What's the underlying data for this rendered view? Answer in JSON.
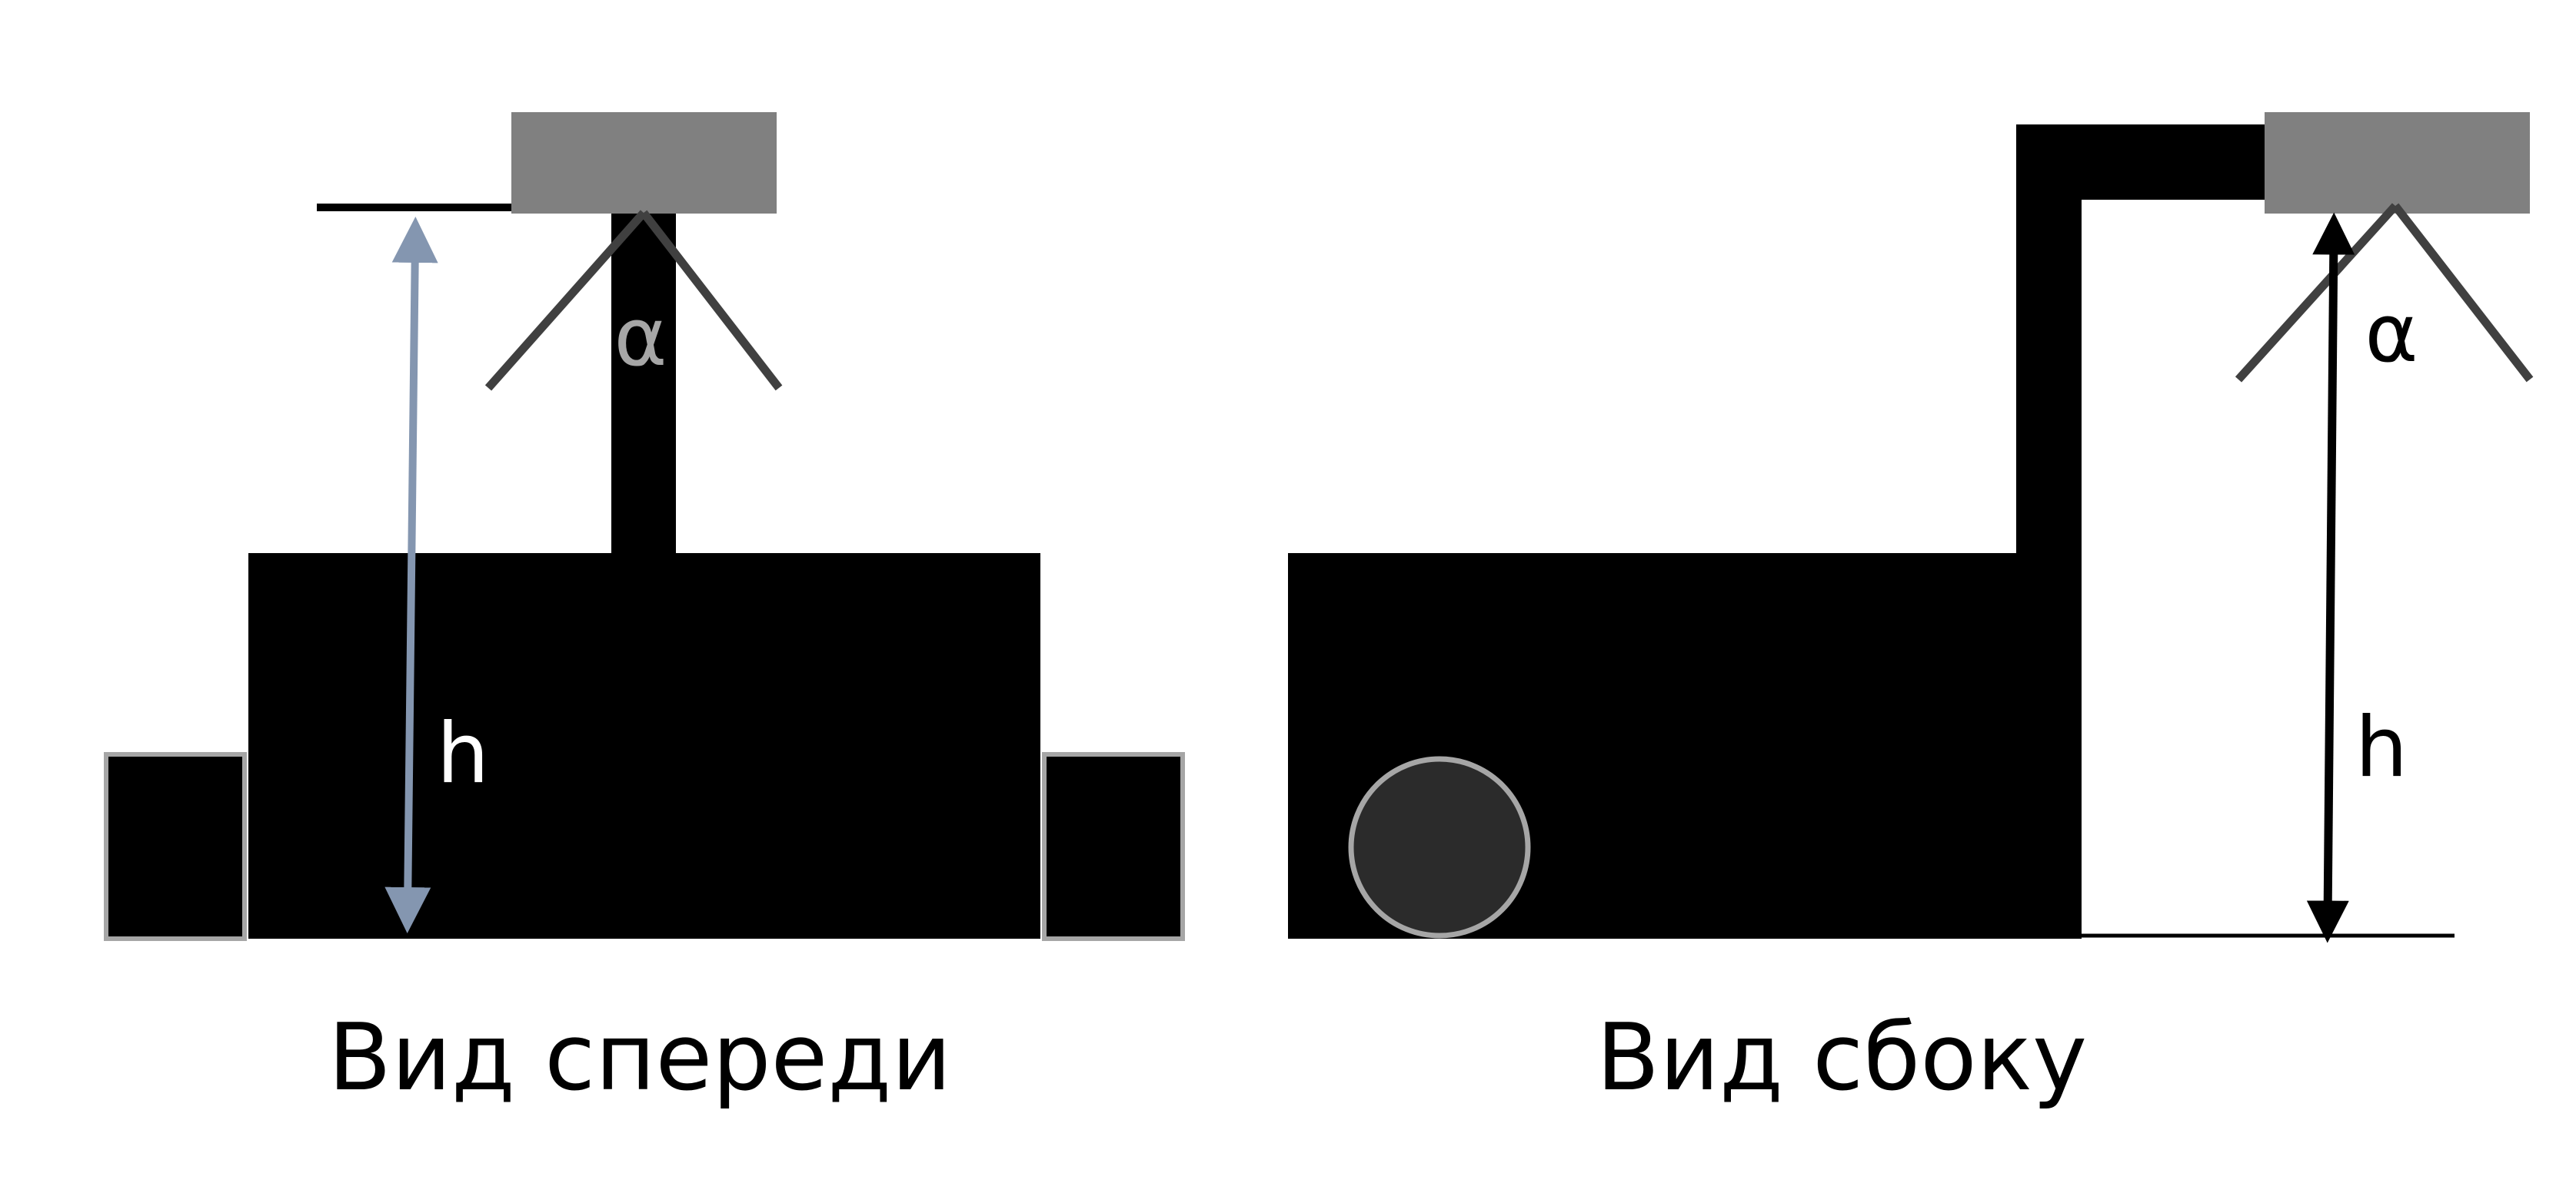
{
  "front_view": {
    "caption": "Вид спереди",
    "height_label": "h",
    "angle_label": "α"
  },
  "side_view": {
    "caption": "Вид сбоку",
    "height_label": "h",
    "angle_label": "α"
  },
  "colors": {
    "body": "#000000",
    "camera": "#808080",
    "wheel_outline": "#a6a6a6",
    "wheel_fill": "#2b2b2b",
    "front_dimension_arrow": "#8496b0",
    "side_dimension_arrow": "#000000",
    "fov_lines": "#404040",
    "front_alpha_text": "#a6a6a6",
    "text": "#000000",
    "white_text": "#ffffff"
  }
}
